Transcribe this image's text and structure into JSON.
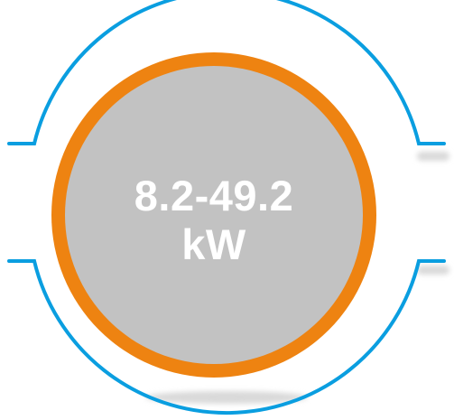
{
  "badge": {
    "range": "8.2-49.2",
    "unit": "kW"
  },
  "colors": {
    "outer_ring": "#0a9ee0",
    "inner_ring": "#ee8311",
    "disc_fill": "#c2c2c2",
    "text": "#ffffff",
    "shadow": "#d9d9d9"
  }
}
